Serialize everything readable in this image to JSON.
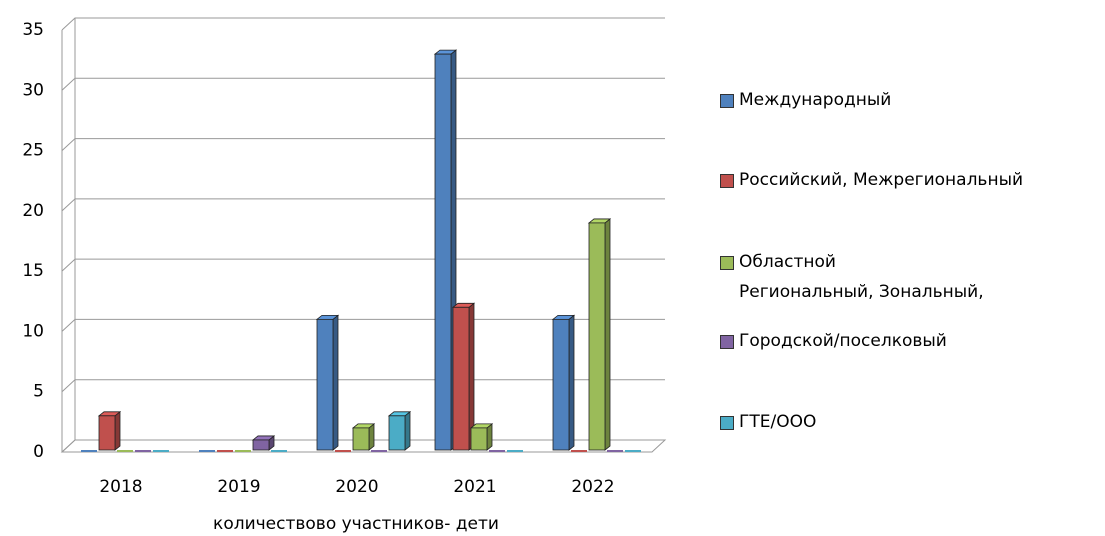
{
  "chart_data": {
    "type": "bar3d",
    "x_label": "количествово участников- дети",
    "categories": [
      "2018",
      "2019",
      "2020",
      "2021",
      "2022"
    ],
    "series": [
      {
        "name": "Международный",
        "color": "#4f81bd",
        "values": [
          0,
          0,
          11,
          33,
          11
        ]
      },
      {
        "name": "Российский, Межрегиональный",
        "color": "#c0504d",
        "values": [
          3,
          0,
          0,
          12,
          0
        ]
      },
      {
        "name": "Областной\nРегиональный, Зональный,",
        "color": "#9bbb59",
        "values": [
          0,
          0,
          2,
          2,
          19
        ]
      },
      {
        "name": "Городской/поселковый",
        "color": "#8064a2",
        "values": [
          0,
          1,
          0,
          0,
          0
        ]
      },
      {
        "name": "ГТЕ/ООО",
        "color": "#4bacc6",
        "values": [
          0,
          0,
          3,
          0,
          0
        ]
      }
    ],
    "ylim": [
      0,
      35
    ],
    "yticks": [
      0,
      5,
      10,
      15,
      20,
      25,
      30,
      35
    ],
    "grid": true,
    "legend": "right"
  }
}
